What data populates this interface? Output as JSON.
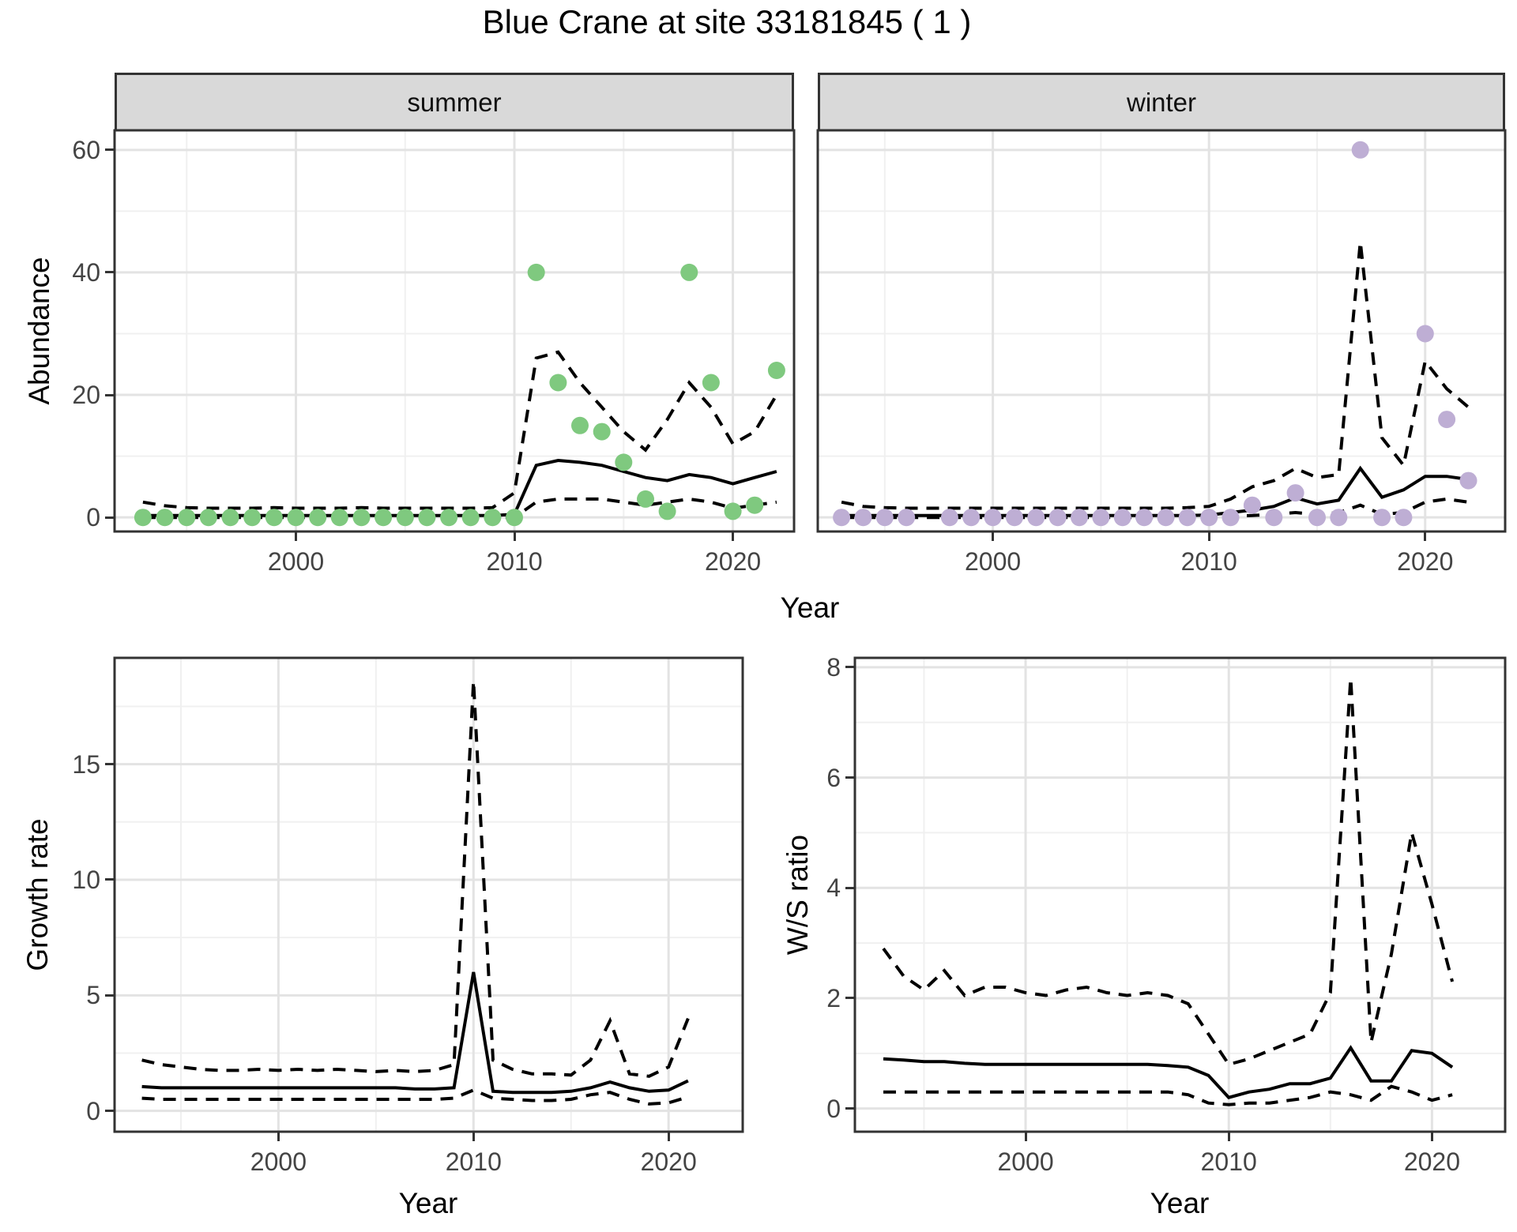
{
  "title": "Blue Crane at site 33181845 ( 1 )",
  "facets": {
    "summer": "summer",
    "winter": "winter"
  },
  "axes": {
    "abundance_label": "Abundance",
    "growth_label": "Growth rate",
    "ws_label": "W/S ratio",
    "year_label": "Year"
  },
  "colors": {
    "summer_point": "#7FC97F",
    "winter_point": "#BEAED4",
    "line": "#000000",
    "strip_bg": "#D9D9D9",
    "grid_major": "#E3E3E3",
    "grid_minor": "#F0F0F0",
    "panel_border": "#333333",
    "tick_text": "#444444"
  },
  "chart_data": [
    {
      "id": "abundance-summer",
      "type": "line+scatter",
      "facet_label": "summer",
      "x_label": "Year",
      "y_label": "Abundance",
      "point_color": "#7FC97F",
      "x": [
        1993,
        1994,
        1995,
        1996,
        1997,
        1998,
        1999,
        2000,
        2001,
        2002,
        2003,
        2004,
        2005,
        2006,
        2007,
        2008,
        2009,
        2010,
        2011,
        2012,
        2013,
        2014,
        2015,
        2016,
        2017,
        2018,
        2019,
        2020,
        2021,
        2022
      ],
      "xlim": [
        1991.7,
        2022.8
      ],
      "ylim": [
        -2.3,
        63.2
      ],
      "x_ticks": {
        "labels": [
          "2000",
          "2010",
          "2020"
        ],
        "values": [
          2000,
          2010,
          2020
        ],
        "minor": [
          1995,
          2005,
          2015
        ]
      },
      "y_ticks": {
        "labels": [
          "0",
          "20",
          "40",
          "60"
        ],
        "values": [
          0,
          20,
          40,
          60
        ],
        "minor": [
          10,
          30,
          50
        ]
      },
      "series": [
        {
          "name": "observed",
          "style": "points",
          "values": [
            0,
            0,
            0,
            0,
            0,
            0,
            0,
            0,
            0,
            0,
            0,
            0,
            0,
            0,
            0,
            0,
            0,
            0,
            40,
            22,
            15,
            14,
            9,
            3,
            1,
            40,
            22,
            1,
            2,
            24
          ]
        },
        {
          "name": "fit",
          "style": "solid",
          "values": [
            0.3,
            0.3,
            0.3,
            0.3,
            0.3,
            0.3,
            0.3,
            0.3,
            0.3,
            0.3,
            0.3,
            0.3,
            0.3,
            0.3,
            0.3,
            0.3,
            0.3,
            0.5,
            8.5,
            9.3,
            9,
            8.5,
            7.5,
            6.5,
            6,
            7,
            6.5,
            5.5,
            6.5,
            7.5
          ]
        },
        {
          "name": "ci_upper",
          "style": "dashed",
          "values": [
            2.5,
            1.9,
            1.6,
            1.5,
            1.5,
            1.5,
            1.6,
            1.5,
            1.5,
            1.5,
            1.6,
            1.5,
            1.5,
            1.5,
            1.5,
            1.5,
            1.6,
            4,
            26,
            27,
            22,
            18,
            14,
            11,
            16,
            22,
            18,
            12,
            14,
            20
          ]
        },
        {
          "name": "ci_lower",
          "style": "dashed",
          "values": [
            0,
            0,
            0,
            0,
            0,
            0,
            0,
            0,
            0,
            0,
            0,
            0,
            0,
            0,
            0,
            0,
            0,
            0,
            2.5,
            3,
            3,
            3,
            2.5,
            2,
            2.5,
            3,
            2.5,
            1.5,
            2,
            2.5
          ]
        }
      ]
    },
    {
      "id": "abundance-winter",
      "type": "line+scatter",
      "facet_label": "winter",
      "x_label": "Year",
      "y_label": "Abundance",
      "point_color": "#BEAED4",
      "x": [
        1993,
        1994,
        1995,
        1996,
        1997,
        1998,
        1999,
        2000,
        2001,
        2002,
        2003,
        2004,
        2005,
        2006,
        2007,
        2008,
        2009,
        2010,
        2011,
        2012,
        2013,
        2014,
        2015,
        2016,
        2017,
        2018,
        2019,
        2020,
        2021,
        2022
      ],
      "xlim": [
        1991.9,
        2023.7
      ],
      "ylim": [
        -2.3,
        63.2
      ],
      "x_ticks": {
        "labels": [
          "2000",
          "2010",
          "2020"
        ],
        "values": [
          2000,
          2010,
          2020
        ],
        "minor": [
          1995,
          2005,
          2015
        ]
      },
      "y_ticks": {
        "labels": [
          "0",
          "20",
          "40",
          "60"
        ],
        "values": [
          0,
          20,
          40,
          60
        ],
        "minor": [
          10,
          30,
          50
        ]
      },
      "series": [
        {
          "name": "observed",
          "style": "points",
          "values": [
            0,
            0,
            0,
            0,
            null,
            0,
            0,
            0,
            0,
            0,
            0,
            0,
            0,
            0,
            0,
            0,
            0,
            0,
            0,
            2,
            0,
            4,
            0,
            0,
            60,
            0,
            0,
            30,
            16,
            6
          ]
        },
        {
          "name": "fit",
          "style": "solid",
          "values": [
            0.3,
            0.3,
            0.3,
            0.3,
            0.3,
            0.3,
            0.3,
            0.3,
            0.3,
            0.3,
            0.3,
            0.3,
            0.3,
            0.3,
            0.3,
            0.3,
            0.3,
            0.4,
            0.8,
            1.2,
            1.8,
            3.2,
            2.2,
            2.8,
            8,
            3.3,
            4.5,
            6.7,
            6.7,
            6.2
          ]
        },
        {
          "name": "ci_upper",
          "style": "dashed",
          "values": [
            2.5,
            1.8,
            1.6,
            1.5,
            1.5,
            1.5,
            1.5,
            1.5,
            1.5,
            1.5,
            1.5,
            1.5,
            1.5,
            1.5,
            1.5,
            1.5,
            1.6,
            1.8,
            3,
            5,
            6,
            8,
            6.5,
            7,
            45,
            13,
            8.5,
            25.5,
            21,
            18
          ]
        },
        {
          "name": "ci_lower",
          "style": "dashed",
          "values": [
            0,
            0,
            0,
            0,
            0,
            0,
            0,
            0,
            0,
            0,
            0,
            0,
            0,
            0,
            0,
            0,
            0,
            0,
            0.2,
            0.3,
            0.5,
            0.8,
            0.5,
            0.8,
            2,
            0.5,
            0.8,
            2.5,
            3,
            2.5
          ]
        }
      ]
    },
    {
      "id": "growth-rate",
      "type": "line",
      "facet_label": "",
      "x_label": "Year",
      "y_label": "Growth rate",
      "x": [
        1993,
        1994,
        1995,
        1996,
        1997,
        1998,
        1999,
        2000,
        2001,
        2002,
        2003,
        2004,
        2005,
        2006,
        2007,
        2008,
        2009,
        2010,
        2011,
        2012,
        2013,
        2014,
        2015,
        2016,
        2017,
        2018,
        2019,
        2020,
        2021
      ],
      "xlim": [
        1991.6,
        2023.8
      ],
      "ylim": [
        -0.9,
        19.6
      ],
      "x_ticks": {
        "labels": [
          "2000",
          "2010",
          "2020"
        ],
        "values": [
          2000,
          2010,
          2020
        ],
        "minor": [
          1995,
          2005,
          2015
        ]
      },
      "y_ticks": {
        "labels": [
          "0",
          "5",
          "10",
          "15"
        ],
        "values": [
          0,
          5,
          10,
          15
        ],
        "minor": [
          2.5,
          7.5,
          12.5,
          17.5
        ]
      },
      "series": [
        {
          "name": "fit",
          "style": "solid",
          "values": [
            1.05,
            1,
            1,
            1,
            1,
            1,
            1,
            1,
            1,
            1,
            1,
            1,
            1,
            1,
            0.95,
            0.95,
            1,
            6,
            0.85,
            0.8,
            0.8,
            0.8,
            0.85,
            1,
            1.25,
            1,
            0.85,
            0.9,
            1.3
          ]
        },
        {
          "name": "ci_upper",
          "style": "dashed",
          "values": [
            2.2,
            2,
            1.9,
            1.8,
            1.75,
            1.75,
            1.8,
            1.75,
            1.8,
            1.75,
            1.8,
            1.75,
            1.7,
            1.75,
            1.7,
            1.75,
            2,
            18.6,
            2.2,
            1.8,
            1.6,
            1.6,
            1.55,
            2.2,
            3.9,
            1.6,
            1.5,
            1.9,
            4
          ]
        },
        {
          "name": "ci_lower",
          "style": "dashed",
          "values": [
            0.55,
            0.5,
            0.5,
            0.5,
            0.5,
            0.5,
            0.5,
            0.5,
            0.5,
            0.5,
            0.5,
            0.5,
            0.5,
            0.5,
            0.5,
            0.5,
            0.55,
            0.9,
            0.55,
            0.5,
            0.45,
            0.45,
            0.5,
            0.7,
            0.8,
            0.5,
            0.3,
            0.35,
            0.6
          ]
        }
      ]
    },
    {
      "id": "ws-ratio",
      "type": "line",
      "facet_label": "",
      "x_label": "Year",
      "y_label": "W/S ratio",
      "x": [
        1993,
        1994,
        1995,
        1996,
        1997,
        1998,
        1999,
        2000,
        2001,
        2002,
        2003,
        2004,
        2005,
        2006,
        2007,
        2008,
        2009,
        2010,
        2011,
        2012,
        2013,
        2014,
        2015,
        2016,
        2017,
        2018,
        2019,
        2020,
        2021
      ],
      "xlim": [
        1991.6,
        2023.6
      ],
      "ylim": [
        -0.42,
        8.17
      ],
      "x_ticks": {
        "labels": [
          "2000",
          "2010",
          "2020"
        ],
        "values": [
          2000,
          2010,
          2020
        ],
        "minor": [
          1995,
          2005,
          2015
        ]
      },
      "y_ticks": {
        "labels": [
          "0",
          "2",
          "4",
          "6",
          "8"
        ],
        "values": [
          0,
          2,
          4,
          6,
          8
        ],
        "minor": [
          1,
          3,
          5,
          7
        ]
      },
      "series": [
        {
          "name": "fit",
          "style": "solid",
          "values": [
            0.9,
            0.88,
            0.85,
            0.85,
            0.82,
            0.8,
            0.8,
            0.8,
            0.8,
            0.8,
            0.8,
            0.8,
            0.8,
            0.8,
            0.78,
            0.75,
            0.6,
            0.2,
            0.3,
            0.35,
            0.45,
            0.45,
            0.55,
            1.1,
            0.5,
            0.5,
            1.05,
            1,
            0.75
          ]
        },
        {
          "name": "ci_upper",
          "style": "dashed",
          "values": [
            2.9,
            2.4,
            2.15,
            2.5,
            2.05,
            2.2,
            2.2,
            2.1,
            2.05,
            2.15,
            2.2,
            2.1,
            2.05,
            2.1,
            2.05,
            1.9,
            1.35,
            0.8,
            0.9,
            1.05,
            1.2,
            1.35,
            2.1,
            7.8,
            1.2,
            2.8,
            5,
            3.7,
            2.3
          ]
        },
        {
          "name": "ci_lower",
          "style": "dashed",
          "values": [
            0.3,
            0.3,
            0.3,
            0.3,
            0.3,
            0.3,
            0.3,
            0.3,
            0.3,
            0.3,
            0.3,
            0.3,
            0.3,
            0.3,
            0.3,
            0.25,
            0.1,
            0.07,
            0.1,
            0.1,
            0.15,
            0.2,
            0.3,
            0.25,
            0.15,
            0.4,
            0.3,
            0.15,
            0.25
          ]
        }
      ]
    }
  ]
}
